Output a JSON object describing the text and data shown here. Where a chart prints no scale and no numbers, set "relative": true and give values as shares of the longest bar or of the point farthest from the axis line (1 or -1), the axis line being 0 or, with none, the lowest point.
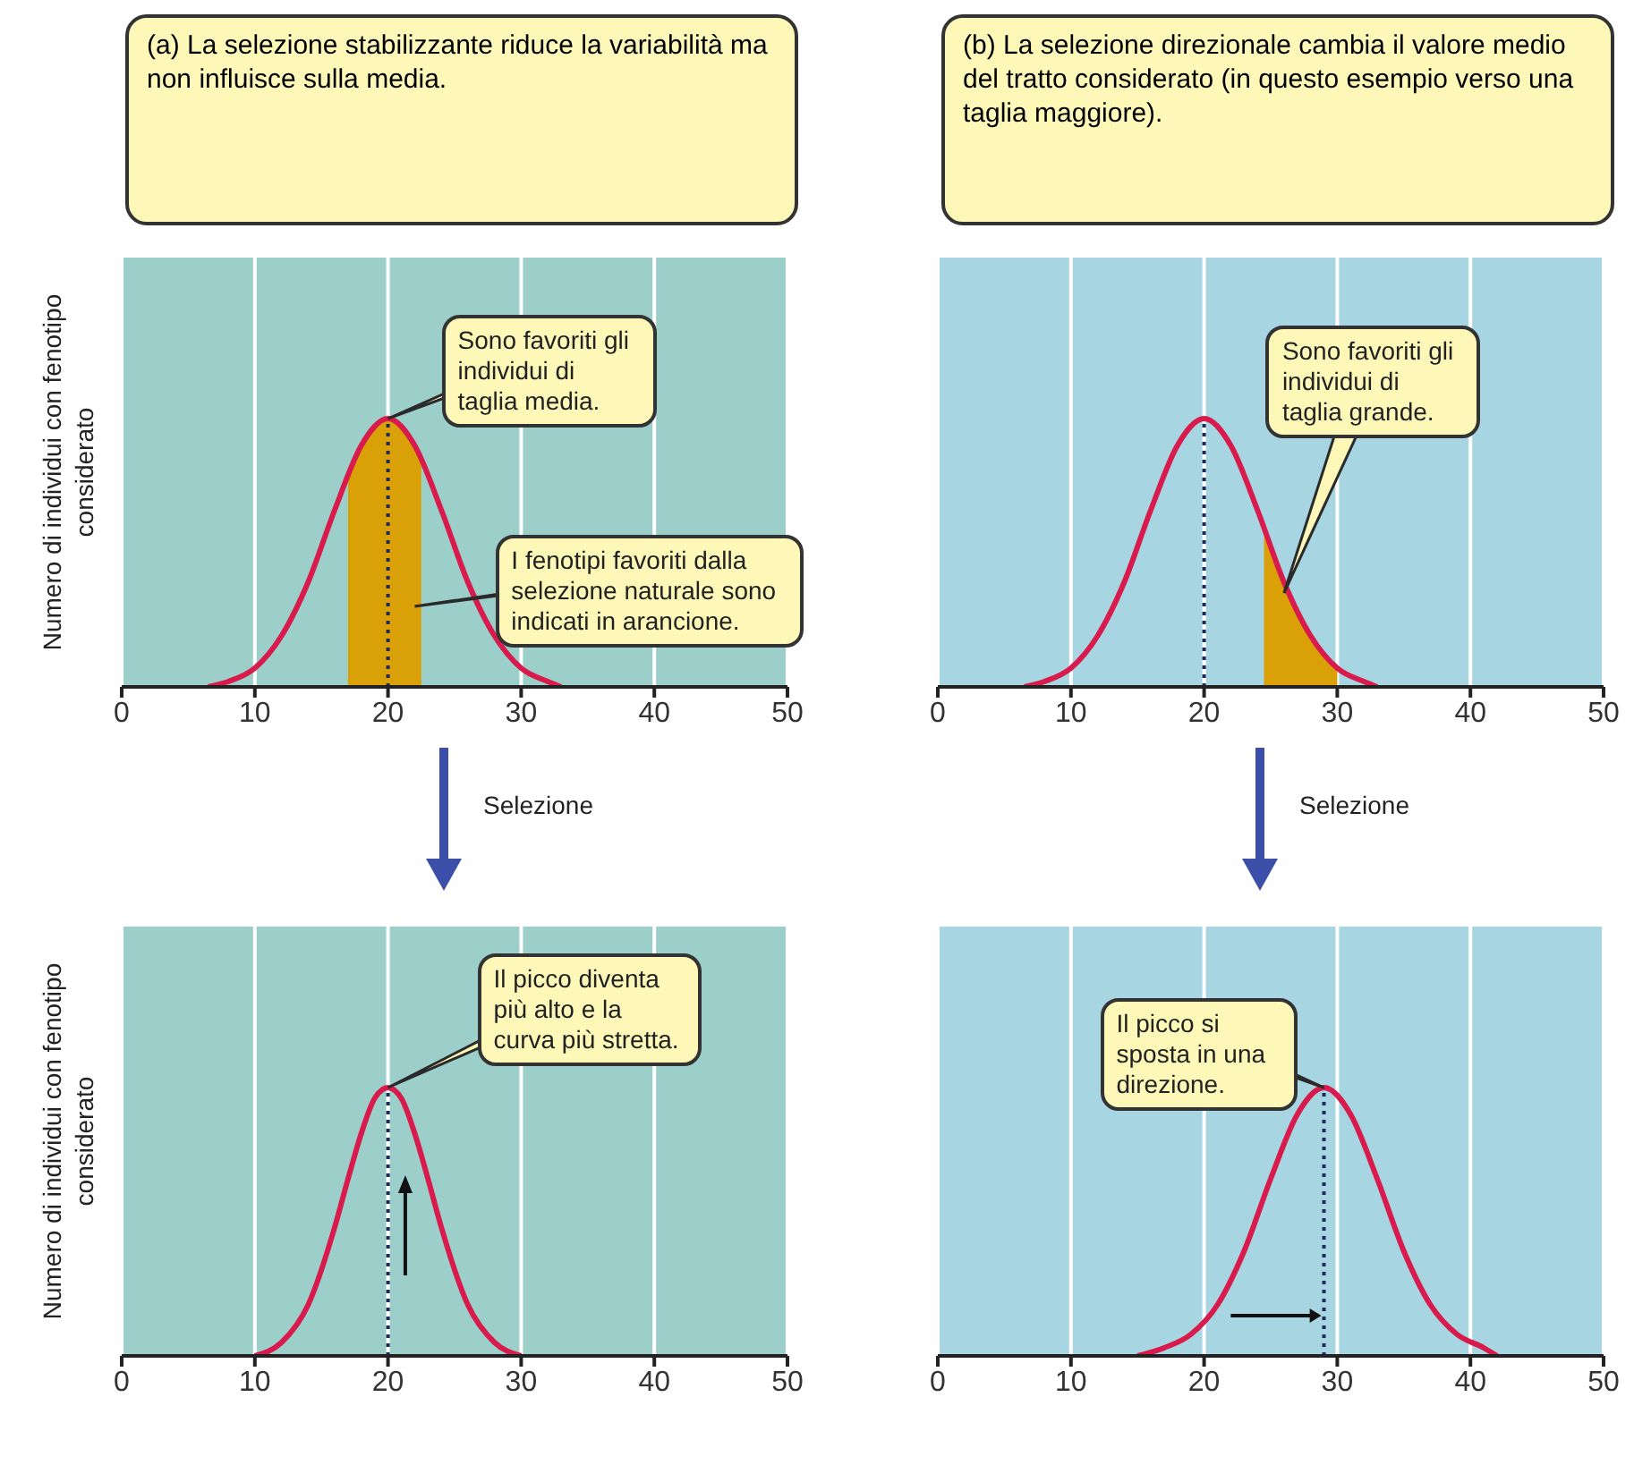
{
  "chart_data": [
    {
      "type": "line",
      "title": "(a) La selezione stabilizzante riduce la variabilità ma non influisce sulla media.",
      "ylabel": "Numero di individui con fenotipo considerato",
      "relative": true,
      "xlim": [
        0,
        50
      ],
      "xticks": [
        0,
        10,
        20,
        30,
        40,
        50
      ],
      "grid": "x",
      "series": [
        {
          "type": "area",
          "color": "#d9a008",
          "x": [
            17,
            18,
            19,
            20,
            21,
            22,
            22.5
          ],
          "values": [
            0.79,
            0.9,
            0.97,
            1,
            0.97,
            0.9,
            0.85
          ]
        },
        {
          "color": "#d81b4c",
          "x": [
            6.5,
            8,
            10,
            12,
            14,
            16,
            18,
            20,
            22,
            24,
            26,
            28,
            30,
            32,
            33
          ],
          "values": [
            0,
            0.02,
            0.07,
            0.19,
            0.39,
            0.66,
            0.9,
            1,
            0.9,
            0.66,
            0.39,
            0.19,
            0.07,
            0.02,
            0
          ]
        }
      ],
      "ref_lines": [
        {
          "axis": "x",
          "value": 20,
          "color": "#1c2b5a",
          "line_style": "dotted"
        }
      ],
      "annotations": [
        {
          "text": "Sono favoriti gli individui di taglia media.",
          "x": 20,
          "y": 1
        },
        {
          "text": "I fenotipi favoriti dalla selezione naturale sono indicati in arancione.",
          "x": 22,
          "y": 0.3
        },
        "Selezione"
      ]
    },
    {
      "type": "line",
      "title": "(b) La selezione direzionale cambia il valore medio del tratto considerato (in questo esempio verso una taglia maggiore).",
      "relative": true,
      "xlim": [
        0,
        50
      ],
      "xticks": [
        0,
        10,
        20,
        30,
        40,
        50
      ],
      "grid": "x",
      "series": [
        {
          "type": "area",
          "color": "#d9a008",
          "x": [
            24.5,
            25,
            26,
            27,
            28,
            29,
            30
          ],
          "values": [
            0.59,
            0.52,
            0.39,
            0.28,
            0.19,
            0.12,
            0.07
          ]
        },
        {
          "color": "#d81b4c",
          "x": [
            6.5,
            8,
            10,
            12,
            14,
            16,
            18,
            20,
            22,
            24,
            26,
            28,
            30,
            32,
            33
          ],
          "values": [
            0,
            0.02,
            0.07,
            0.19,
            0.39,
            0.66,
            0.9,
            1,
            0.9,
            0.66,
            0.39,
            0.19,
            0.07,
            0.02,
            0
          ]
        }
      ],
      "ref_lines": [
        {
          "axis": "x",
          "value": 20,
          "color": "#1c2b5a",
          "line_style": "dotted"
        }
      ],
      "annotations": [
        {
          "text": "Sono favoriti gli individui di taglia grande.",
          "x": 26,
          "y": 0.35
        },
        "Selezione"
      ]
    },
    {
      "type": "line",
      "ylabel": "Numero di individui con fenotipo considerato",
      "relative": true,
      "xlim": [
        0,
        50
      ],
      "xticks": [
        0,
        10,
        20,
        30,
        40,
        50
      ],
      "grid": "x",
      "series": [
        {
          "color": "#d81b4c",
          "x": [
            10,
            12,
            14,
            16,
            17,
            18,
            19,
            20,
            21,
            22,
            23,
            24,
            26,
            28,
            30
          ],
          "values": [
            0,
            0.05,
            0.19,
            0.48,
            0.66,
            0.83,
            0.96,
            1,
            0.96,
            0.83,
            0.66,
            0.48,
            0.19,
            0.05,
            0
          ]
        }
      ],
      "ref_lines": [
        {
          "axis": "x",
          "value": 20,
          "color": "#1c2b5a",
          "line_style": "dotted"
        }
      ],
      "annotations": [
        {
          "text": "Il picco diventa più alto e la curva più stretta.",
          "x": 20,
          "y": 1
        }
      ]
    },
    {
      "type": "line",
      "relative": true,
      "xlim": [
        0,
        50
      ],
      "xticks": [
        0,
        10,
        20,
        30,
        40,
        50
      ],
      "grid": "x",
      "series": [
        {
          "color": "#d81b4c",
          "x": [
            15,
            17,
            19,
            21,
            23,
            25,
            27,
            29,
            31,
            33,
            35,
            37,
            39,
            41,
            42
          ],
          "values": [
            0,
            0.03,
            0.08,
            0.19,
            0.39,
            0.66,
            0.9,
            1,
            0.9,
            0.66,
            0.39,
            0.19,
            0.08,
            0.03,
            0
          ]
        }
      ],
      "ref_lines": [
        {
          "axis": "x",
          "value": 29,
          "color": "#1c2b5a",
          "line_style": "dotted"
        }
      ],
      "annotations": [
        {
          "text": "Il picco si sposta in una direzione.",
          "x": 29,
          "y": 1
        }
      ]
    }
  ]
}
